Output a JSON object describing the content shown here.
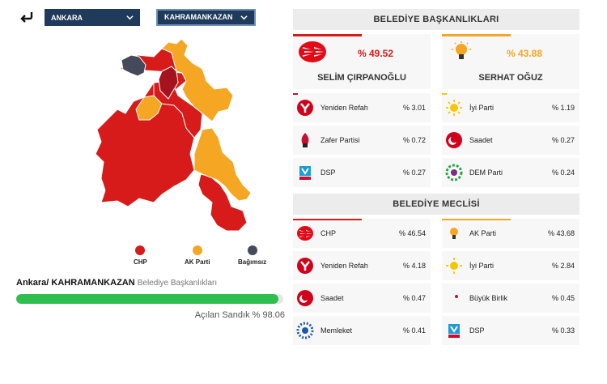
{
  "header": {
    "city_select": "ANKARA",
    "district_select": "KAHRAMANKAZAN"
  },
  "legend": [
    {
      "label": "CHP",
      "color": "#d71a1a"
    },
    {
      "label": "AK Parti",
      "color": "#f5a623"
    },
    {
      "label": "Bağımsız",
      "color": "#454a5a"
    }
  ],
  "location": {
    "path": "Ankara/ KAHRAMANKAZAN",
    "type": "Belediye Başkanlıkları"
  },
  "sandik": {
    "label": "Açılan Sandık % 98.06",
    "percent": 98.06
  },
  "mayor": {
    "title": "BELEDİYE BAŞKANLIKLARI",
    "leaders": [
      {
        "name": "SELİM ÇIRPANOĞLU",
        "pct": "% 49.52",
        "color": "#d71a1a",
        "logo": "chp-logo"
      },
      {
        "name": "SERHAT OĞUZ",
        "pct": "% 43.88",
        "color": "#f5a623",
        "logo": "akparti-logo"
      }
    ],
    "others": [
      {
        "name": "Yeniden Refah",
        "pct": "% 3.01",
        "logo": "yeniden-refah-logo"
      },
      {
        "name": "İyi Parti",
        "pct": "% 1.19",
        "logo": "iyi-parti-logo"
      },
      {
        "name": "Zafer Partisi",
        "pct": "% 0.72",
        "logo": "zafer-partisi-logo"
      },
      {
        "name": "Saadet",
        "pct": "% 0.27",
        "logo": "saadet-logo"
      },
      {
        "name": "DSP",
        "pct": "% 0.27",
        "logo": "dsp-logo"
      },
      {
        "name": "DEM Parti",
        "pct": "% 0.24",
        "logo": "dem-parti-logo"
      }
    ]
  },
  "council": {
    "title": "BELEDİYE MECLİSİ",
    "parties": [
      {
        "name": "CHP",
        "pct": "% 46.54",
        "logo": "chp-logo"
      },
      {
        "name": "AK Parti",
        "pct": "% 43.68",
        "logo": "akparti-logo"
      },
      {
        "name": "Yeniden Refah",
        "pct": "% 4.18",
        "logo": "yeniden-refah-logo"
      },
      {
        "name": "İyi Parti",
        "pct": "% 2.84",
        "logo": "iyi-parti-logo"
      },
      {
        "name": "Saadet",
        "pct": "% 0.47",
        "logo": "saadet-logo"
      },
      {
        "name": "Büyük Birlik",
        "pct": "% 0.45",
        "logo": "buyuk-birlik-logo"
      },
      {
        "name": "Memleket",
        "pct": "% 0.41",
        "logo": "memleket-logo"
      },
      {
        "name": "DSP",
        "pct": "% 0.33",
        "logo": "dsp-logo"
      }
    ]
  }
}
